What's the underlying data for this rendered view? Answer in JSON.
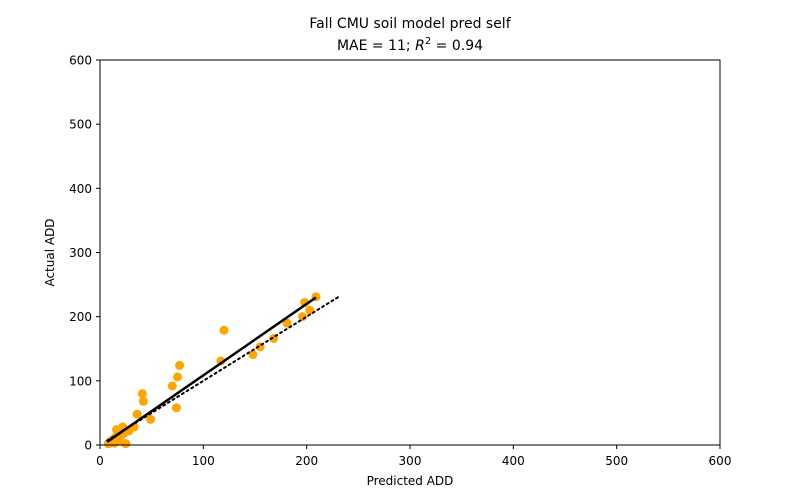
{
  "chart_data": {
    "type": "scatter",
    "title": "Fall CMU soil model pred self",
    "subtitle_prefix": "MAE = 11; ",
    "subtitle_r": "R",
    "subtitle_r_exp": "2",
    "subtitle_suffix": " = 0.94",
    "xlabel": "Predicted ADD",
    "ylabel": "Actual ADD",
    "xlim": [
      0,
      600
    ],
    "ylim": [
      0,
      600
    ],
    "xticks": [
      0,
      100,
      200,
      300,
      400,
      500,
      600
    ],
    "yticks": [
      0,
      100,
      200,
      300,
      400,
      500,
      600
    ],
    "grid": false,
    "colors": {
      "points": "#ffa500",
      "fit_line": "#000000",
      "identity_line": "#000000"
    },
    "points": [
      {
        "x": 8,
        "y": 2
      },
      {
        "x": 10,
        "y": 5
      },
      {
        "x": 12,
        "y": 8
      },
      {
        "x": 14,
        "y": 3
      },
      {
        "x": 15,
        "y": 12
      },
      {
        "x": 16,
        "y": 24
      },
      {
        "x": 18,
        "y": 15
      },
      {
        "x": 18,
        "y": 10
      },
      {
        "x": 20,
        "y": 6
      },
      {
        "x": 22,
        "y": 28
      },
      {
        "x": 23,
        "y": 18
      },
      {
        "x": 25,
        "y": 2
      },
      {
        "x": 28,
        "y": 22
      },
      {
        "x": 33,
        "y": 28
      },
      {
        "x": 36,
        "y": 48
      },
      {
        "x": 41,
        "y": 80
      },
      {
        "x": 42,
        "y": 68
      },
      {
        "x": 49,
        "y": 40
      },
      {
        "x": 70,
        "y": 92
      },
      {
        "x": 74,
        "y": 58
      },
      {
        "x": 75,
        "y": 106
      },
      {
        "x": 77,
        "y": 124
      },
      {
        "x": 117,
        "y": 131
      },
      {
        "x": 120,
        "y": 179
      },
      {
        "x": 148,
        "y": 141
      },
      {
        "x": 155,
        "y": 153
      },
      {
        "x": 168,
        "y": 166
      },
      {
        "x": 181,
        "y": 190
      },
      {
        "x": 196,
        "y": 200
      },
      {
        "x": 198,
        "y": 222
      },
      {
        "x": 203,
        "y": 210
      },
      {
        "x": 209,
        "y": 231
      }
    ],
    "fit_line": {
      "x": [
        7,
        209
      ],
      "y": [
        5,
        230
      ]
    },
    "identity_line": {
      "x": [
        7,
        233
      ],
      "y": [
        7,
        233
      ]
    }
  }
}
